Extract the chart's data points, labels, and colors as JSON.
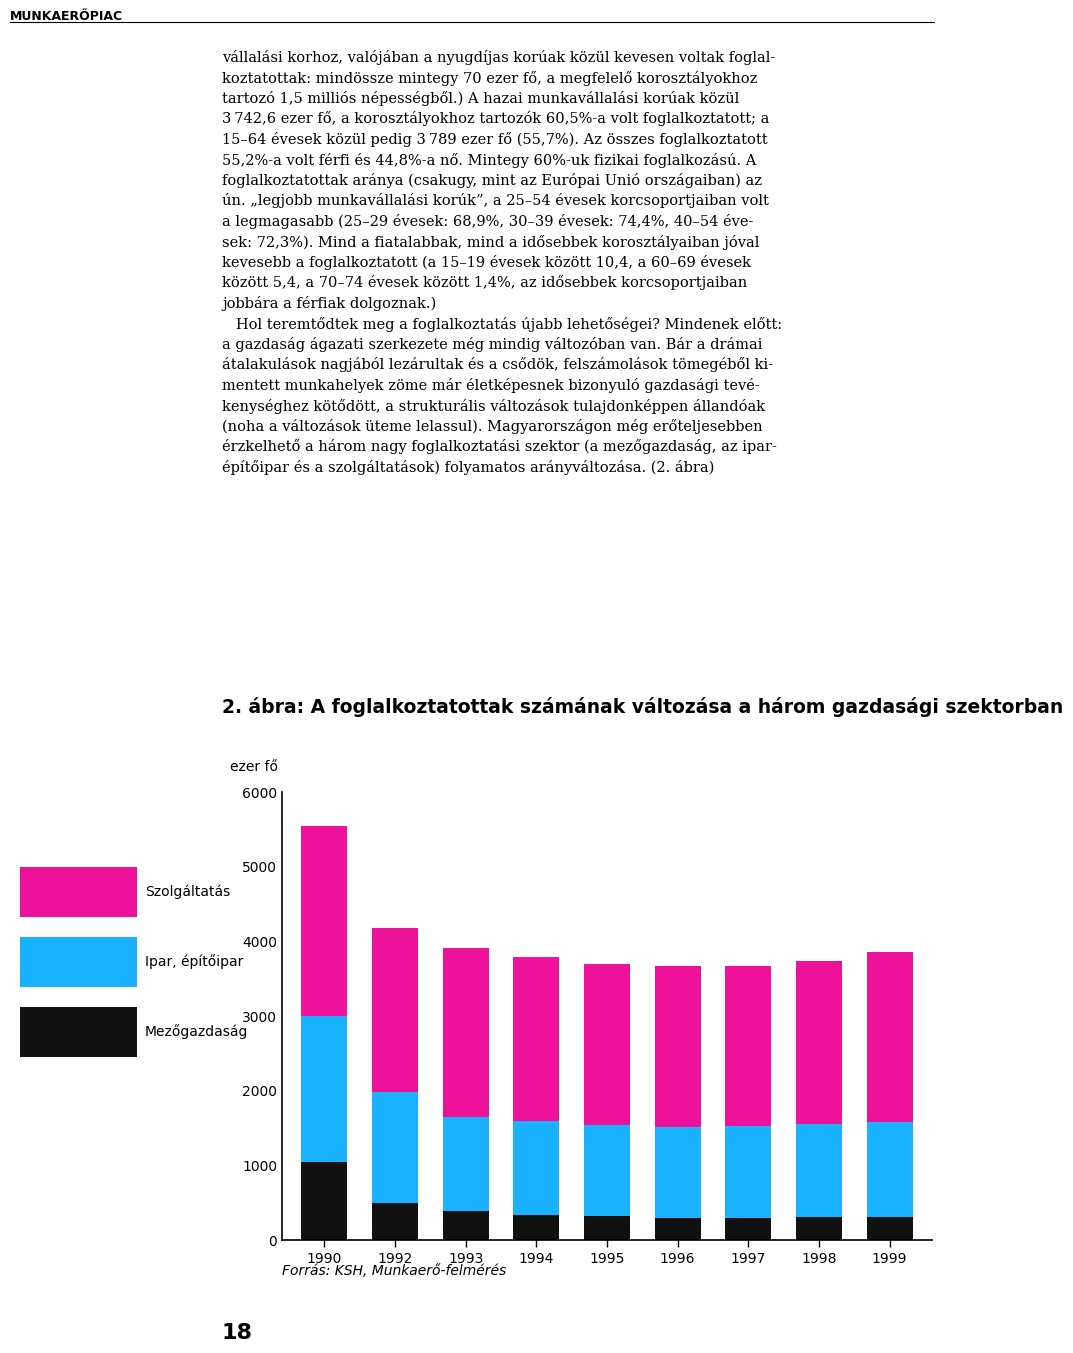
{
  "years": [
    1990,
    1992,
    1993,
    1994,
    1995,
    1996,
    1997,
    1998,
    1999
  ],
  "mezogazdasag": [
    1050,
    500,
    390,
    340,
    320,
    300,
    295,
    305,
    310
  ],
  "ipar": [
    1950,
    1480,
    1260,
    1260,
    1220,
    1215,
    1230,
    1255,
    1275
  ],
  "szolgaltatas": [
    2550,
    2195,
    2260,
    2190,
    2160,
    2160,
    2150,
    2175,
    2275
  ],
  "color_mezogazdasag": "#111111",
  "color_ipar": "#1ab2ff",
  "color_szolgaltatas": "#ee1199",
  "ylim": [
    0,
    6000
  ],
  "yticks": [
    0,
    1000,
    2000,
    3000,
    4000,
    5000,
    6000
  ],
  "ylabel": "ezer fő",
  "chart_title": "2. ábra: A foglalkoztatottak számának változása a három gazdasági szektorban",
  "legend_labels": [
    "Szolgáltatás",
    "Ipar, építőipar",
    "Mezőgazdaság"
  ],
  "source_text": "Forrás: KSH, Munkaerő-felmérés",
  "bar_width": 0.65,
  "figure_bg": "#ffffff",
  "header": "MUNKAERŐPIAC",
  "page_number": "18",
  "body_text_lines": [
    "vállalási korhoz, valójában a nyugdíjas korúak közül kevesen voltak foglal-",
    "koztatottak: mindössze mintegy 70 ezer fő, a megfelelő korosztályokhoz",
    "tartozó 1,5 milliós népességből.) A hazai munkavállalási korúak közül",
    "3 742,6 ezer fő, a korosztályokhoz tartozók 60,5%-a volt foglalkoztatott; a",
    "15–64 évesek közül pedig 3 789 ezer fő (55,7%). Az összes foglalkoztatott",
    "55,2%-a volt férfi és 44,8%-a nő. Mintegy 60%-uk fizikai foglalkozású. A",
    "foglalkoztatottak aránya (csakugy, mint az Európai Unió országaiban) az",
    "ún. „legjobb munkavállalási korúk”, a 25–54 évesek korcsoportjaiban volt",
    "a legmagasabb (25–29 évesek: 68,9%, 30–39 évesek: 74,4%, 40–54 éve-",
    "sek: 72,3%). Mind a fiatalabbak, mind a idősebbek korosztályaiban jóval",
    "kevesebb a foglalkoztatott (a 15–19 évesek között 10,4, a 60–69 évesek",
    "között 5,4, a 70–74 évesek között 1,4%, az idősebbek korcsoportjaiban",
    "jobbára a férfiak dolgoznak.)",
    "   Hol teremtődtek meg a foglalkoztatás újabb lehetőségei? Mindenek előtt:",
    "a gazdaság ágazati szerkezete még mindig változóban van. Bár a drámai",
    "átalakulások nagjából lezárultak és a csődök, felszámolások tömegéből ki-",
    "mentett munkahelyek zöme már életképesnek bizonyuló gazdasági tevé-",
    "kenységhez kötődött, a strukturális változások tulajdonképpen állandóak",
    "(noha a változások üteme lelassul). Magyarországon még erőteljesebben",
    "érzkelhető a három nagy foglalkoztatási szektor (a mezőgazdaság, az ipar-",
    "építőipar és a szolgáltatások) folyamatos arányváltozása. (2. ábra)"
  ]
}
